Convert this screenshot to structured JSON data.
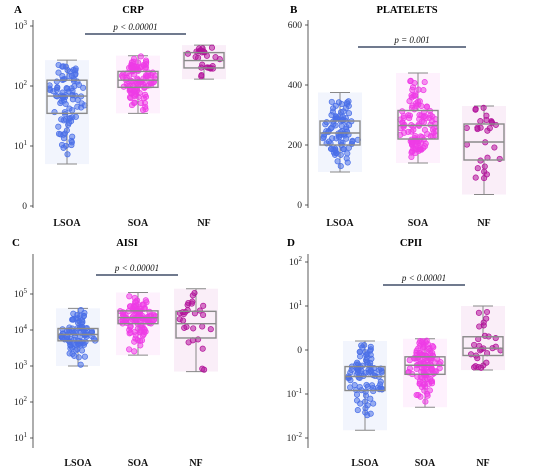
{
  "chart_data": [
    {
      "panel": "A",
      "title": "CRP",
      "type": "scatter",
      "y_scale": "log",
      "y_ticks": [
        "0",
        "10^1",
        "10^2",
        "10^3"
      ],
      "categories": [
        "LSOA",
        "SOA",
        "NF"
      ],
      "box_stats": [
        {
          "category": "LSOA",
          "q1": 35,
          "median": 68,
          "q3": 125,
          "whisker_low": 5,
          "whisker_high": 270
        },
        {
          "category": "SOA",
          "q1": 95,
          "median": 125,
          "q3": 175,
          "whisker_low": 35,
          "whisker_high": 320
        },
        {
          "category": "NF",
          "q1": 200,
          "median": 265,
          "q3": 360,
          "whisker_low": 130,
          "whisker_high": 480
        }
      ],
      "colors": {
        "LSOA": "#4a6fe8",
        "SOA": "#ee3ce6",
        "NF": "#b2129a"
      },
      "point_counts": {
        "LSOA": 90,
        "SOA": 110,
        "NF": 28
      },
      "comparison": {
        "from": "LSOA",
        "to": "NF",
        "label": "p < 0.00001"
      }
    },
    {
      "panel": "B",
      "title": "PLATELETS",
      "type": "scatter",
      "y_scale": "linear",
      "ylim": [
        0,
        600
      ],
      "y_ticks": [
        "0",
        "200",
        "400",
        "600"
      ],
      "categories": [
        "LSOA",
        "SOA",
        "NF"
      ],
      "box_stats": [
        {
          "category": "LSOA",
          "q1": 200,
          "median": 240,
          "q3": 280,
          "whisker_low": 110,
          "whisker_high": 375
        },
        {
          "category": "SOA",
          "q1": 220,
          "median": 265,
          "q3": 315,
          "whisker_low": 140,
          "whisker_high": 440
        },
        {
          "category": "NF",
          "q1": 150,
          "median": 210,
          "q3": 270,
          "whisker_low": 35,
          "whisker_high": 330
        }
      ],
      "colors": {
        "LSOA": "#4a6fe8",
        "SOA": "#ee3ce6",
        "NF": "#b2129a"
      },
      "point_counts": {
        "LSOA": 90,
        "SOA": 110,
        "NF": 28
      },
      "comparison": {
        "from": "LSOA",
        "to": "NF",
        "label": "p = 0.001"
      }
    },
    {
      "panel": "C",
      "title": "AISI",
      "type": "scatter",
      "y_scale": "log",
      "y_ticks": [
        "10^1",
        "10^2",
        "10^3",
        "10^4",
        "10^5"
      ],
      "categories": [
        "LSOA",
        "SOA",
        "NF"
      ],
      "box_stats": [
        {
          "category": "LSOA",
          "q1": 5000,
          "median": 7500,
          "q3": 11000,
          "whisker_low": 1000,
          "whisker_high": 40000
        },
        {
          "category": "SOA",
          "q1": 15000,
          "median": 22000,
          "q3": 34000,
          "whisker_low": 2000,
          "whisker_high": 110000
        },
        {
          "category": "NF",
          "q1": 6000,
          "median": 15000,
          "q3": 33000,
          "whisker_low": 700,
          "whisker_high": 140000
        }
      ],
      "colors": {
        "LSOA": "#4a6fe8",
        "SOA": "#ee3ce6",
        "NF": "#b2129a"
      },
      "point_counts": {
        "LSOA": 90,
        "SOA": 110,
        "NF": 28
      },
      "comparison": {
        "from": "LSOA",
        "to": "NF",
        "label": "p < 0.00001"
      }
    },
    {
      "panel": "D",
      "title": "CPII",
      "type": "scatter",
      "y_scale": "log",
      "y_ticks": [
        "10^-2",
        "10^-1",
        "0",
        "10^1",
        "10^2"
      ],
      "categories": [
        "LSOA",
        "SOA",
        "NF"
      ],
      "box_stats": [
        {
          "category": "LSOA",
          "q1": 0.12,
          "median": 0.25,
          "q3": 0.42,
          "whisker_low": 0.015,
          "whisker_high": 1.6
        },
        {
          "category": "SOA",
          "q1": 0.28,
          "median": 0.45,
          "q3": 0.7,
          "whisker_low": 0.05,
          "whisker_high": 1.8
        },
        {
          "category": "NF",
          "q1": 0.75,
          "median": 1.1,
          "q3": 2.0,
          "whisker_low": 0.35,
          "whisker_high": 10
        }
      ],
      "colors": {
        "LSOA": "#4a6fe8",
        "SOA": "#ee3ce6",
        "NF": "#b2129a"
      },
      "point_counts": {
        "LSOA": 90,
        "SOA": 110,
        "NF": 28
      },
      "comparison": {
        "from": "LSOA",
        "to": "NF",
        "label": "p < 0.00001"
      }
    }
  ]
}
